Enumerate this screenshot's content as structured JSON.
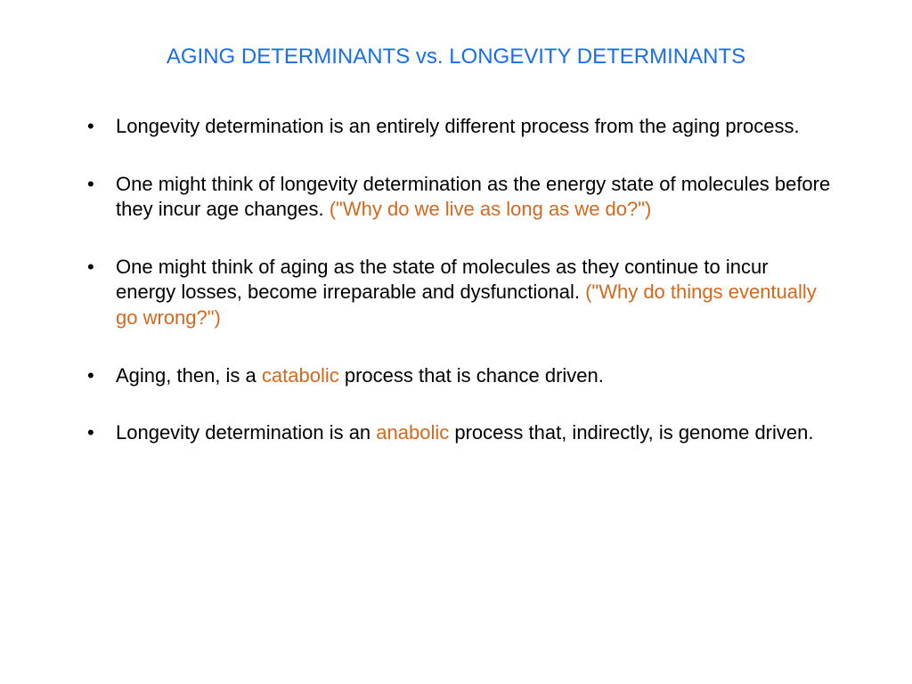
{
  "title": "AGING DETERMINANTS vs. LONGEVITY DETERMINANTS",
  "colors": {
    "title_color": "#1a6fe8",
    "body_color": "#000000",
    "accent_color": "#d2691e",
    "background": "#ffffff"
  },
  "typography": {
    "title_fontsize": 24,
    "body_fontsize": 22,
    "font_family": "Arial"
  },
  "bullets": [
    {
      "segments": [
        {
          "text": "Longevity determination is an entirely different process from the aging process.",
          "accent": false
        }
      ]
    },
    {
      "segments": [
        {
          "text": "One might think of longevity determination as the energy state of molecules before they incur age changes. ",
          "accent": false
        },
        {
          "text": "(\"Why do we live as long as we do?\")",
          "accent": true
        }
      ]
    },
    {
      "segments": [
        {
          "text": "One might think of aging as the state of molecules as they continue to incur energy losses, become irreparable and dysfunctional. ",
          "accent": false
        },
        {
          "text": "(\"Why do things eventually go wrong?\")",
          "accent": true
        }
      ]
    },
    {
      "segments": [
        {
          "text": "Aging, then, is a ",
          "accent": false
        },
        {
          "text": "catabolic",
          "accent": true
        },
        {
          "text": " process that is chance driven.",
          "accent": false
        }
      ]
    },
    {
      "segments": [
        {
          "text": "Longevity determination is an ",
          "accent": false
        },
        {
          "text": "anabolic",
          "accent": true
        },
        {
          "text": " process that, indirectly, is genome driven.",
          "accent": false
        }
      ]
    }
  ]
}
